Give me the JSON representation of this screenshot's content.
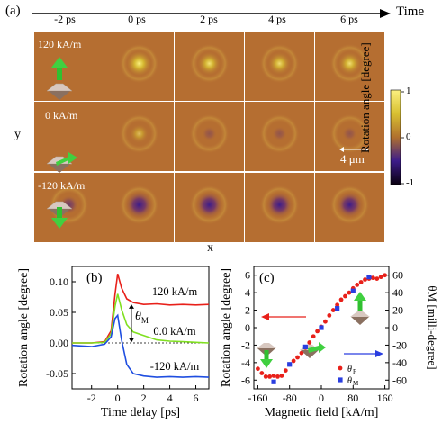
{
  "panel_a": {
    "label": "(a)",
    "time_axis_label": "Time",
    "time_labels": [
      "-2 ps",
      "0 ps",
      "2 ps",
      "4 ps",
      "6 ps"
    ],
    "row_labels": [
      "120 kA/m",
      "0 kA/m",
      "-120 kA/m"
    ],
    "x_label": "x",
    "y_label": "y",
    "scale_bar_label": "4 μm",
    "colorbar": {
      "label": "Rotation angle [degree]",
      "ticks": [
        "1",
        "0",
        "-1"
      ],
      "colors": [
        "#0a0010",
        "#3c1c8a",
        "#b0702e",
        "#d8c030",
        "#fbf080"
      ]
    },
    "colors": {
      "background": "#b56e31",
      "separator": "#ffffff"
    },
    "intensity": [
      [
        0.0,
        0.85,
        0.65,
        0.6,
        0.62
      ],
      [
        0.0,
        0.35,
        -0.05,
        -0.05,
        -0.05
      ],
      [
        -0.35,
        -0.9,
        -0.85,
        -0.8,
        -0.8
      ]
    ]
  },
  "panel_b": {
    "label": "(b)",
    "annotation": "θM",
    "chart_data": {
      "type": "line",
      "xlabel": "Time delay [ps]",
      "ylabel": "Rotation angle [degree]",
      "xlim": [
        -3.5,
        7
      ],
      "ylim": [
        -0.075,
        0.125
      ],
      "x_ticks": [
        -2,
        0,
        2,
        4,
        6
      ],
      "y_ticks": [
        -0.05,
        0.0,
        0.05,
        0.1
      ],
      "y_tick_labels": [
        "-0.05",
        "0.00",
        "0.05",
        "0.10"
      ],
      "series": [
        {
          "name": "120 kA/m",
          "color": "#e8201a",
          "x": [
            -3.5,
            -2,
            -1,
            -0.5,
            -0.2,
            0,
            0.3,
            0.7,
            1.2,
            2,
            3,
            4,
            5,
            6,
            7
          ],
          "y": [
            0.0,
            0.0,
            0.002,
            0.02,
            0.08,
            0.113,
            0.09,
            0.072,
            0.066,
            0.063,
            0.064,
            0.062,
            0.063,
            0.062,
            0.063
          ]
        },
        {
          "name": "0.0 kA/m",
          "color": "#80e020",
          "x": [
            -3.5,
            -2,
            -1,
            -0.5,
            -0.2,
            0,
            0.3,
            0.7,
            1.2,
            2,
            3,
            4,
            5,
            6,
            7
          ],
          "y": [
            0.0,
            0.0,
            0.001,
            0.015,
            0.06,
            0.08,
            0.055,
            0.03,
            0.018,
            0.012,
            0.005,
            0.003,
            0.002,
            0.001,
            0.0
          ]
        },
        {
          "name": "-120 kA/m",
          "color": "#1f4ee0",
          "x": [
            -3.5,
            -2,
            -1,
            -0.5,
            -0.2,
            0,
            0.3,
            0.7,
            1.2,
            2,
            3,
            4,
            5,
            6,
            7
          ],
          "y": [
            -0.004,
            -0.006,
            -0.002,
            0.01,
            0.04,
            0.045,
            0.005,
            -0.035,
            -0.05,
            -0.054,
            -0.056,
            -0.055,
            -0.056,
            -0.055,
            -0.056
          ]
        }
      ],
      "baseline": 0.0
    }
  },
  "panel_c": {
    "label": "(c)",
    "chart_data": {
      "type": "scatter",
      "xlabel": "Magnetic field [kA/m]",
      "ylabel": "Rotation angle [degree]",
      "y2label": "θM [milli-degree]",
      "xlim": [
        -170,
        170
      ],
      "ylim": [
        -7,
        7
      ],
      "y2lim": [
        -70,
        70
      ],
      "x_ticks": [
        -160,
        -80,
        0,
        80,
        160
      ],
      "y_ticks": [
        -6,
        -4,
        -2,
        0,
        2,
        4,
        6
      ],
      "y2_ticks": [
        -60,
        -40,
        -20,
        0,
        20,
        40,
        60
      ],
      "legend": "bottom-right",
      "series": [
        {
          "name": "θF",
          "color": "#e8201a",
          "marker": "circle",
          "axis": "left",
          "x": [
            -160,
            -150,
            -140,
            -130,
            -120,
            -110,
            -100,
            -90,
            -80,
            -70,
            -60,
            -50,
            -40,
            -30,
            -20,
            -10,
            0,
            10,
            20,
            30,
            40,
            50,
            60,
            70,
            80,
            90,
            100,
            110,
            120,
            130,
            140,
            150,
            160
          ],
          "y": [
            -4.7,
            -5.2,
            -5.6,
            -5.6,
            -5.5,
            -5.6,
            -5.5,
            -4.9,
            -4.2,
            -3.8,
            -3.4,
            -2.9,
            -2.3,
            -1.7,
            -1.0,
            -0.4,
            0.1,
            0.7,
            1.4,
            2.0,
            2.6,
            3.2,
            3.6,
            4.0,
            4.5,
            4.9,
            5.2,
            5.5,
            5.6,
            5.7,
            5.6,
            5.8,
            6.0
          ]
        },
        {
          "name": "θM",
          "color": "#2a3ee0",
          "marker": "square",
          "axis": "right",
          "x": [
            -120,
            -80,
            -40,
            0,
            40,
            80,
            120
          ],
          "y": [
            -62,
            -42,
            -22,
            0,
            22,
            42,
            58
          ]
        }
      ]
    }
  }
}
